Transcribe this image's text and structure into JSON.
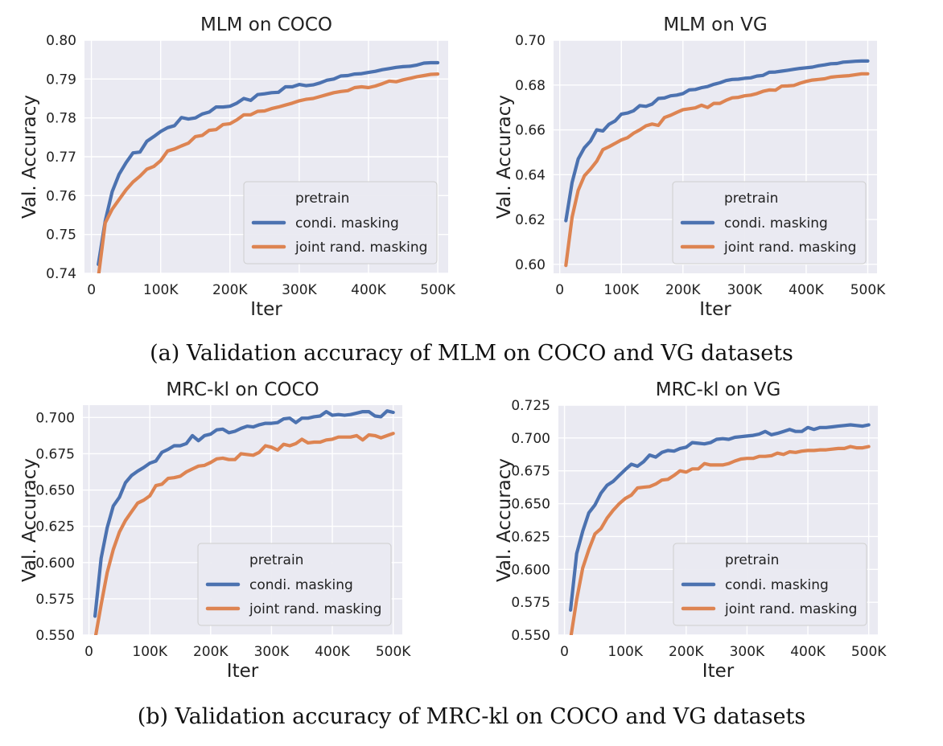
{
  "captions": {
    "a": "(a) Validation accuracy of MLM on COCO and VG datasets",
    "b": "(b) Validation accuracy of MRC-kl on COCO and VG datasets"
  },
  "colors": {
    "series_blue": "#4c72b0",
    "series_orange": "#dd8452",
    "plot_bg": "#eaeaf2",
    "grid": "#ffffff"
  },
  "chart_data": [
    {
      "id": "mlm-coco",
      "type": "line",
      "title": "MLM on COCO",
      "xlabel": "Iter",
      "ylabel": "Val. Accuracy",
      "xlim": [
        -10000,
        515000
      ],
      "ylim": [
        0.74,
        0.8
      ],
      "xticks": [
        0,
        100000,
        200000,
        300000,
        400000,
        500000
      ],
      "xtick_labels": [
        "0",
        "100K",
        "200K",
        "300K",
        "400K",
        "500K"
      ],
      "yticks": [
        0.74,
        0.75,
        0.76,
        0.77,
        0.78,
        0.79,
        0.8
      ],
      "ytick_labels": [
        "0.74",
        "0.75",
        "0.76",
        "0.77",
        "0.78",
        "0.79",
        "0.80"
      ],
      "grid": true,
      "legend": {
        "title": "pretrain",
        "position": "lower-right"
      },
      "x_start": 10000,
      "x_step": 10000,
      "series": [
        {
          "name": "condi. masking",
          "color": "#4c72b0",
          "values": [
            0.7423,
            0.7535,
            0.761,
            0.7655,
            0.7685,
            0.771,
            0.7712,
            0.774,
            0.7752,
            0.7765,
            0.7775,
            0.778,
            0.7801,
            0.7797,
            0.78,
            0.781,
            0.7815,
            0.7828,
            0.7828,
            0.783,
            0.7838,
            0.785,
            0.7845,
            0.786,
            0.7862,
            0.7865,
            0.7866,
            0.788,
            0.788,
            0.7886,
            0.7883,
            0.7885,
            0.789,
            0.7897,
            0.79,
            0.7908,
            0.7909,
            0.7913,
            0.7914,
            0.7917,
            0.792,
            0.7924,
            0.7927,
            0.793,
            0.7932,
            0.7933,
            0.7936,
            0.7941,
            0.7942,
            0.7942
          ]
        },
        {
          "name": "joint rand. masking",
          "color": "#dd8452",
          "values": [
            0.739,
            0.753,
            0.7565,
            0.759,
            0.7615,
            0.7635,
            0.765,
            0.7668,
            0.7675,
            0.769,
            0.7715,
            0.772,
            0.7728,
            0.7735,
            0.7752,
            0.7755,
            0.7768,
            0.777,
            0.7783,
            0.7785,
            0.7795,
            0.7808,
            0.7808,
            0.7817,
            0.7818,
            0.7824,
            0.7828,
            0.7833,
            0.7838,
            0.7844,
            0.7848,
            0.785,
            0.7855,
            0.786,
            0.7865,
            0.7868,
            0.787,
            0.7878,
            0.788,
            0.7878,
            0.7882,
            0.7888,
            0.7895,
            0.7893,
            0.7898,
            0.7902,
            0.7906,
            0.7909,
            0.7912,
            0.7913
          ]
        }
      ]
    },
    {
      "id": "mlm-vg",
      "type": "line",
      "title": "MLM on VG",
      "xlabel": "Iter",
      "ylabel": "Val. Accuracy",
      "xlim": [
        -10000,
        515000
      ],
      "ylim": [
        0.596,
        0.7
      ],
      "xticks": [
        0,
        100000,
        200000,
        300000,
        400000,
        500000
      ],
      "xtick_labels": [
        "0",
        "100K",
        "200K",
        "300K",
        "400K",
        "500K"
      ],
      "yticks": [
        0.6,
        0.62,
        0.64,
        0.66,
        0.68,
        0.7
      ],
      "ytick_labels": [
        "0.60",
        "0.62",
        "0.64",
        "0.66",
        "0.68",
        "0.70"
      ],
      "grid": true,
      "legend": {
        "title": "pretrain",
        "position": "lower-right"
      },
      "x_start": 10000,
      "x_step": 10000,
      "series": [
        {
          "name": "condi. masking",
          "color": "#4c72b0",
          "values": [
            0.6195,
            0.6365,
            0.647,
            0.652,
            0.655,
            0.66,
            0.6595,
            0.6625,
            0.664,
            0.667,
            0.6675,
            0.6685,
            0.6708,
            0.6705,
            0.6715,
            0.674,
            0.6742,
            0.6752,
            0.6755,
            0.6762,
            0.6778,
            0.678,
            0.6788,
            0.6793,
            0.6803,
            0.681,
            0.682,
            0.6825,
            0.6826,
            0.683,
            0.6832,
            0.684,
            0.6843,
            0.6857,
            0.6858,
            0.6862,
            0.6866,
            0.687,
            0.6874,
            0.6877,
            0.688,
            0.6886,
            0.689,
            0.6895,
            0.6896,
            0.6902,
            0.6904,
            0.6906,
            0.6907,
            0.6907
          ]
        },
        {
          "name": "joint rand. masking",
          "color": "#dd8452",
          "values": [
            0.5995,
            0.621,
            0.633,
            0.6395,
            0.6425,
            0.646,
            0.6512,
            0.6525,
            0.654,
            0.6555,
            0.6565,
            0.6585,
            0.66,
            0.6618,
            0.6626,
            0.662,
            0.6655,
            0.6665,
            0.6678,
            0.669,
            0.6694,
            0.6698,
            0.671,
            0.67,
            0.6718,
            0.6718,
            0.6732,
            0.6743,
            0.6745,
            0.6752,
            0.6755,
            0.6762,
            0.6772,
            0.6778,
            0.6777,
            0.6795,
            0.6796,
            0.6798,
            0.6808,
            0.6816,
            0.6822,
            0.6825,
            0.6828,
            0.6835,
            0.6838,
            0.684,
            0.6842,
            0.6846,
            0.685,
            0.685
          ]
        }
      ]
    },
    {
      "id": "mrc-coco",
      "type": "line",
      "title": "MRC-kl on COCO",
      "xlabel": "Iter",
      "ylabel": "Val. Accuracy",
      "xlim": [
        -10000,
        515000
      ],
      "ylim": [
        0.55,
        0.7085
      ],
      "xticks": [
        0,
        100000,
        200000,
        300000,
        400000,
        500000
      ],
      "xtick_labels": [
        "0",
        "100K",
        "200K",
        "300K",
        "400K",
        "500K"
      ],
      "yticks": [
        0.55,
        0.575,
        0.6,
        0.625,
        0.65,
        0.675,
        0.7
      ],
      "ytick_labels": [
        "0.550",
        "0.575",
        "0.600",
        "0.625",
        "0.650",
        "0.675",
        "0.700"
      ],
      "grid": true,
      "legend": {
        "title": "pretrain",
        "position": "lower-right"
      },
      "x_start": 10000,
      "x_step": 10000,
      "series": [
        {
          "name": "condi. masking",
          "color": "#4c72b0",
          "values": [
            0.563,
            0.603,
            0.624,
            0.639,
            0.645,
            0.655,
            0.66,
            0.663,
            0.6655,
            0.6685,
            0.67,
            0.676,
            0.678,
            0.6805,
            0.6805,
            0.682,
            0.6875,
            0.684,
            0.6875,
            0.6885,
            0.6915,
            0.692,
            0.6895,
            0.6905,
            0.6925,
            0.694,
            0.6935,
            0.695,
            0.696,
            0.696,
            0.6965,
            0.699,
            0.6995,
            0.6965,
            0.6995,
            0.6995,
            0.7005,
            0.701,
            0.704,
            0.7015,
            0.702,
            0.7015,
            0.702,
            0.703,
            0.704,
            0.704,
            0.701,
            0.7005,
            0.7045,
            0.7035
          ]
        },
        {
          "name": "joint rand. masking",
          "color": "#dd8452",
          "values": [
            0.547,
            0.571,
            0.593,
            0.609,
            0.621,
            0.629,
            0.635,
            0.641,
            0.643,
            0.646,
            0.653,
            0.654,
            0.658,
            0.6585,
            0.6595,
            0.6625,
            0.6645,
            0.6665,
            0.667,
            0.669,
            0.6715,
            0.672,
            0.671,
            0.671,
            0.675,
            0.6745,
            0.674,
            0.676,
            0.6805,
            0.6795,
            0.6775,
            0.6815,
            0.6805,
            0.682,
            0.685,
            0.6825,
            0.683,
            0.683,
            0.6845,
            0.685,
            0.6865,
            0.6865,
            0.6865,
            0.6875,
            0.6845,
            0.688,
            0.6875,
            0.686,
            0.6875,
            0.689
          ]
        }
      ]
    },
    {
      "id": "mrc-vg",
      "type": "line",
      "title": "MRC-kl on VG",
      "xlabel": "Iter",
      "ylabel": "Val. Accuracy",
      "xlim": [
        -10000,
        515000
      ],
      "ylim": [
        0.55,
        0.725
      ],
      "xticks": [
        0,
        100000,
        200000,
        300000,
        400000,
        500000
      ],
      "xtick_labels": [
        "0",
        "100K",
        "200K",
        "300K",
        "400K",
        "500K"
      ],
      "yticks": [
        0.55,
        0.575,
        0.6,
        0.625,
        0.65,
        0.675,
        0.7,
        0.725
      ],
      "ytick_labels": [
        "0.550",
        "0.575",
        "0.600",
        "0.625",
        "0.650",
        "0.675",
        "0.700",
        "0.725"
      ],
      "grid": true,
      "legend": {
        "title": "pretrain",
        "position": "lower-right"
      },
      "x_start": 10000,
      "x_step": 10000,
      "series": [
        {
          "name": "condi. masking",
          "color": "#4c72b0",
          "values": [
            0.569,
            0.612,
            0.629,
            0.643,
            0.649,
            0.658,
            0.664,
            0.667,
            0.6715,
            0.676,
            0.68,
            0.6785,
            0.682,
            0.687,
            0.6855,
            0.689,
            0.6905,
            0.69,
            0.692,
            0.693,
            0.6965,
            0.696,
            0.6955,
            0.6965,
            0.699,
            0.6995,
            0.699,
            0.7005,
            0.701,
            0.7015,
            0.702,
            0.703,
            0.705,
            0.7025,
            0.7035,
            0.705,
            0.7065,
            0.705,
            0.705,
            0.708,
            0.7065,
            0.708,
            0.708,
            0.7085,
            0.709,
            0.7095,
            0.71,
            0.7095,
            0.709,
            0.71
          ]
        },
        {
          "name": "joint rand. masking",
          "color": "#dd8452",
          "values": [
            0.547,
            0.577,
            0.601,
            0.615,
            0.627,
            0.631,
            0.639,
            0.645,
            0.65,
            0.654,
            0.6565,
            0.662,
            0.6625,
            0.663,
            0.665,
            0.668,
            0.6685,
            0.6715,
            0.675,
            0.674,
            0.6765,
            0.6765,
            0.6805,
            0.6795,
            0.6795,
            0.6795,
            0.6805,
            0.6825,
            0.684,
            0.6845,
            0.6845,
            0.686,
            0.686,
            0.6865,
            0.6885,
            0.6875,
            0.6895,
            0.689,
            0.69,
            0.6905,
            0.6905,
            0.691,
            0.691,
            0.6915,
            0.692,
            0.692,
            0.6935,
            0.6925,
            0.6925,
            0.6935
          ]
        }
      ]
    }
  ]
}
